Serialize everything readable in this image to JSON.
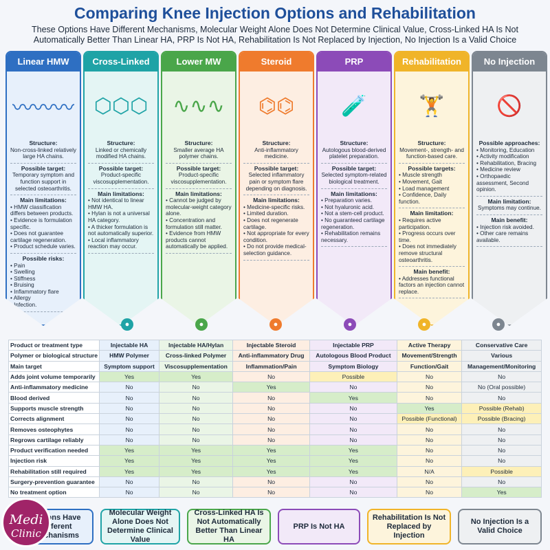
{
  "title": "Comparing Knee Injection Options and Rehabilitation",
  "subtitle": "These Options Have Different Mechanisms, Molecular Weight Alone Does Not Determine Clinical Value, Cross-Linked HA Is Not Automatically Better Than Linear HA, PRP Is Not HA, Rehabilitation Is Not Replaced by Injection, No Injection Is a Valid Choice",
  "cards": [
    {
      "title": "Linear HMW",
      "color": "#2e6fc2",
      "bg": "#e7f0fb",
      "art": "〰〰〰",
      "s1_h": "Structure:",
      "s1": "Non-cross-linked relatively large HA chains.",
      "s2_h": "Possible target:",
      "s2": "Temporary symptom and function support in selected osteoarthritis.",
      "s3_h": "Main limitations:",
      "s3": [
        "HMW classification differs between products.",
        "Evidence is formulation specific.",
        "Does not guarantee cartilage regeneration.",
        "Product schedule varies."
      ],
      "s4_h": "Possible risks:",
      "s4": [
        "Pain",
        "Swelling",
        "Stiffness",
        "Bruising",
        "Inflammatory flare",
        "Allergy",
        "Infection."
      ]
    },
    {
      "title": "Cross-Linked",
      "color": "#1fa3a6",
      "bg": "#e4f5f4",
      "art": "⬡⬡⬡",
      "s1_h": "Structure:",
      "s1": "Linked or chemically modified HA chains.",
      "s2_h": "Possible target:",
      "s2": "Product-specific viscosupplementation.",
      "s3_h": "Main limitations:",
      "s3": [
        "Not identical to linear HMW HA.",
        "Hylan is not a universal HA category.",
        "A thicker formulation is not automatically superior.",
        "Local inflammatory reaction may occur."
      ],
      "s4_h": "",
      "s4": []
    },
    {
      "title": "Lower MW",
      "color": "#4aa64a",
      "bg": "#eaf5e6",
      "art": "∿∿∿",
      "s1_h": "Structure:",
      "s1": "Smaller average HA polymer chains.",
      "s2_h": "Possible target:",
      "s2": "Product-specific viscosupplementation.",
      "s3_h": "Main limitations:",
      "s3": [
        "Cannot be judged by molecular-weight category alone.",
        "Concentration and formulation still matter.",
        "Evidence from HMW products cannot automatically be applied."
      ],
      "s4_h": "",
      "s4": []
    },
    {
      "title": "Steroid",
      "color": "#ef7b2d",
      "bg": "#fdeee2",
      "art": "⌬⌬",
      "s1_h": "Structure:",
      "s1": "Anti-inflammatory medicine.",
      "s2_h": "Possible target:",
      "s2": "Selected inflammatory pain or symptom flare depending on diagnosis.",
      "s3_h": "Main limitations:",
      "s3": [
        "Medicine-specific risks.",
        "Limited duration.",
        "Does not regenerate cartilage.",
        "Not appropriate for every condition.",
        "Do not provide medical-selection guidance."
      ],
      "s4_h": "",
      "s4": []
    },
    {
      "title": "PRP",
      "color": "#8c4bb8",
      "bg": "#f2e9f8",
      "art": "🧪",
      "s1_h": "Structure:",
      "s1": "Autologous blood-derived platelet preparation.",
      "s2_h": "Possible target:",
      "s2": "Selected symptom-related biological treatment.",
      "s3_h": "Main limitations:",
      "s3": [
        "Preparation varies.",
        "Not hyaluronic acid.",
        "Not a stem-cell product.",
        "No guaranteed cartilage regeneration.",
        "Rehabilitation remains necessary."
      ],
      "s4_h": "",
      "s4": []
    },
    {
      "title": "Rehabilitation",
      "color": "#f0b429",
      "bg": "#fdf4dc",
      "art": "🏋",
      "s1_h": "Structure:",
      "s1": "Movement-, strength- and function-based care.",
      "s2_h": "Possible targets:",
      "s2": "",
      "s2_list": [
        "Muscle strength",
        "Movement, Gait",
        "Load management",
        "Confidence, Daily function."
      ],
      "s3_h": "Main limitation:",
      "s3": [
        "Requires active participation.",
        "Progress occurs over time.",
        "Does not immediately remove structural osteoarthritis."
      ],
      "s4_h": "Main benefit:",
      "s4": [
        "Addresses functional factors an injection cannot replace."
      ]
    },
    {
      "title": "No Injection",
      "color": "#7d8690",
      "bg": "#eef0f2",
      "art": "🚫",
      "s1_h": "Possible approaches:",
      "s1": "",
      "s1_list": [
        "Monitoring, Education",
        "Activity modification",
        "Rehabilitation, Bracing",
        "Medicine review",
        "Orthopaedic assessment, Second opinion."
      ],
      "s2_h": "",
      "s2": "",
      "s3_h": "Main limitation:",
      "s3": [],
      "s3_text": "Symptoms may continue.",
      "s4_h": "Main benefit:",
      "s4": [
        "Injection risk avoided.",
        "Other care remains available."
      ]
    }
  ],
  "table": {
    "rows": [
      [
        "Product or treatment type",
        "Injectable HA",
        "Injectable HA/Hylan",
        "Injectable Steroid",
        "Injectable PRP",
        "Active Therapy",
        "Conservative Care"
      ],
      [
        "Polymer or biological structure",
        "HMW Polymer",
        "Cross-linked Polymer",
        "Anti-inflammatory Drug",
        "Autologous Blood Product",
        "Movement/Strength",
        "Various"
      ],
      [
        "Main target",
        "Symptom support",
        "Viscosupplementation",
        "Inflammation/Pain",
        "Symptom Biology",
        "Function/Gait",
        "Management/Monitoring"
      ],
      [
        "Adds joint volume temporarily",
        "Yes",
        "Yes",
        "No",
        "Possible",
        "No",
        "No"
      ],
      [
        "Anti-inflammatory medicine",
        "No",
        "No",
        "Yes",
        "No",
        "No",
        "No (Oral possible)"
      ],
      [
        "Blood derived",
        "No",
        "No",
        "No",
        "Yes",
        "No",
        "No"
      ],
      [
        "Supports muscle strength",
        "No",
        "No",
        "No",
        "No",
        "Yes",
        "Possible (Rehab)"
      ],
      [
        "Corrects alignment",
        "No",
        "No",
        "No",
        "No",
        "Possible (Functional)",
        "Possible (Bracing)"
      ],
      [
        "Removes osteophytes",
        "No",
        "No",
        "No",
        "No",
        "No",
        "No"
      ],
      [
        "Regrows cartilage reliably",
        "No",
        "No",
        "No",
        "No",
        "No",
        "No"
      ],
      [
        "Product verification needed",
        "Yes",
        "Yes",
        "Yes",
        "Yes",
        "No",
        "No"
      ],
      [
        "Injection risk",
        "Yes",
        "Yes",
        "Yes",
        "Yes",
        "No",
        "No"
      ],
      [
        "Rehabilitation still required",
        "Yes",
        "Yes",
        "Yes",
        "Yes",
        "N/A",
        "Possible"
      ],
      [
        "Surgery-prevention guarantee",
        "No",
        "No",
        "No",
        "No",
        "No",
        "No"
      ],
      [
        "No treatment option",
        "No",
        "No",
        "No",
        "No",
        "No",
        "Yes"
      ]
    ]
  },
  "footer": [
    {
      "text": "Options Have Different Mechanisms",
      "color": "#2e6fc2",
      "bg": "#e7f0fb"
    },
    {
      "text": "Molecular Weight Alone Does Not Determine Clinical Value",
      "color": "#1fa3a6",
      "bg": "#e4f5f4"
    },
    {
      "text": "Cross-Linked HA Is Not Automatically Better Than Linear HA",
      "color": "#4aa64a",
      "bg": "#eaf5e6"
    },
    {
      "text": "PRP Is Not HA",
      "color": "#8c4bb8",
      "bg": "#f2e9f8"
    },
    {
      "text": "Rehabilitation Is Not Replaced by Injection",
      "color": "#f0b429",
      "bg": "#fdf4dc"
    },
    {
      "text": "No Injection Is a Valid Choice",
      "color": "#7d8690",
      "bg": "#eef0f2"
    }
  ],
  "logo": {
    "line1": "Medi",
    "line2": "Clinic"
  }
}
